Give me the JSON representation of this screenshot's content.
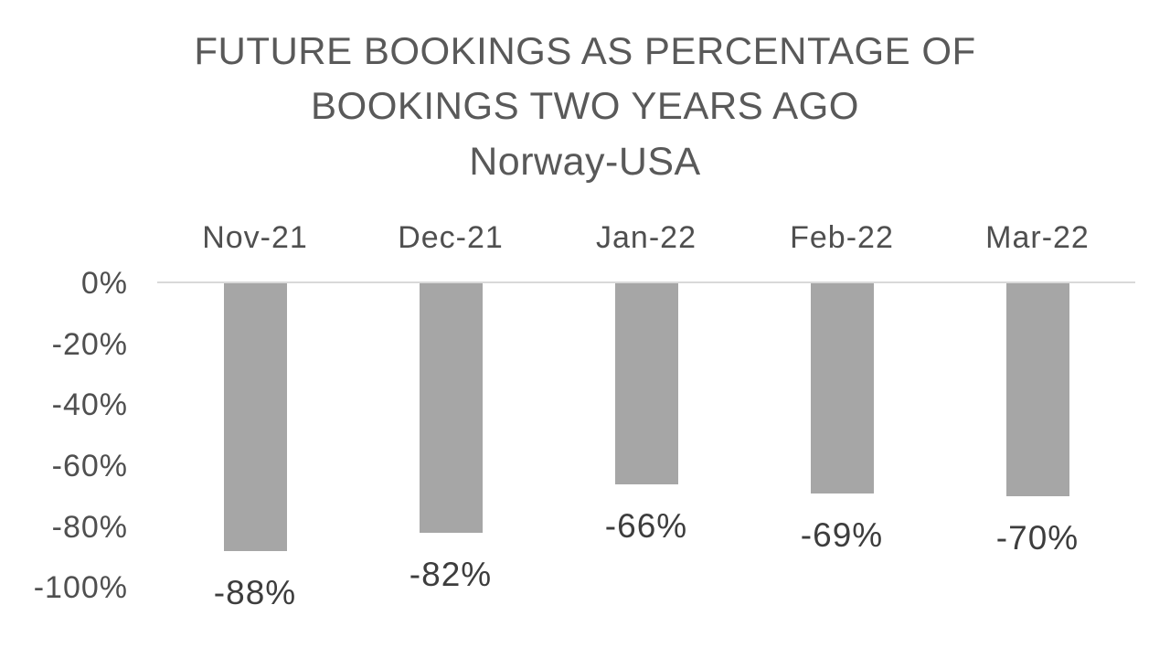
{
  "chart_data": {
    "type": "bar",
    "title_lines": [
      "FUTURE BOOKINGS AS PERCENTAGE OF",
      "BOOKINGS TWO YEARS AGO"
    ],
    "subtitle": "Norway-USA",
    "categories": [
      "Nov-21",
      "Dec-21",
      "Jan-22",
      "Feb-22",
      "Mar-22"
    ],
    "values": [
      -88,
      -82,
      -66,
      -69,
      -70
    ],
    "data_labels": [
      "-88%",
      "-82%",
      "-66%",
      "-69%",
      "-70%"
    ],
    "y_ticks": [
      {
        "label": "0%",
        "value": 0
      },
      {
        "label": "-20%",
        "value": -20
      },
      {
        "label": "-40%",
        "value": -40
      },
      {
        "label": "-60%",
        "value": -60
      },
      {
        "label": "-80%",
        "value": -80
      },
      {
        "label": "-100%",
        "value": -100
      }
    ],
    "ylim": [
      -100,
      0
    ],
    "xlabel": "",
    "ylabel": "",
    "grid": false,
    "legend": "none",
    "data_label_position": "outside-end-below",
    "colors": {
      "bar": "#a6a6a6",
      "axis_line": "#d9d9d9",
      "title_text": "#595959",
      "axis_text": "#4f4f4f",
      "data_label_text": "#3d3d3d",
      "background": "#ffffff"
    }
  }
}
